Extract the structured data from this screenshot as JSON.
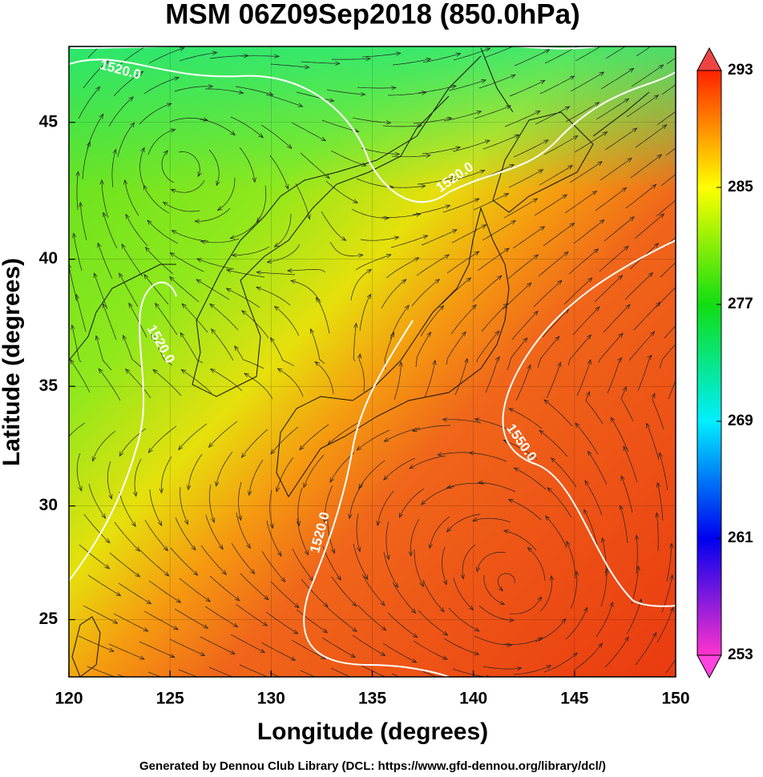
{
  "chart_data": {
    "type": "map",
    "projection": "mercator",
    "title": "MSM 06Z09Sep2018 (850.0hPa)",
    "x_label": "Longitude (degrees)",
    "y_label": "Latitude  (degrees)",
    "xlim": [
      120,
      150
    ],
    "ylim": [
      22.4,
      47.6
    ],
    "xticks": [
      120,
      125,
      130,
      135,
      140,
      145,
      150
    ],
    "yticks": [
      25,
      30,
      35,
      40,
      45
    ],
    "grid": true,
    "contour_labels": [
      "1520.0",
      "1520.0",
      "1520.0",
      "1520.0",
      "1550.0"
    ],
    "colorbar": {
      "range": [
        253,
        293
      ],
      "ticks": [
        253,
        261,
        269,
        277,
        285,
        293
      ],
      "colors": [
        "#ff33cc",
        "#0000ee",
        "#00eeff",
        "#11dd11",
        "#ffff00",
        "#ff2200"
      ]
    },
    "footer": "Generated by Dennou Club Library (DCL: https://www.gfd-dennou.org/library/dcl/)"
  }
}
